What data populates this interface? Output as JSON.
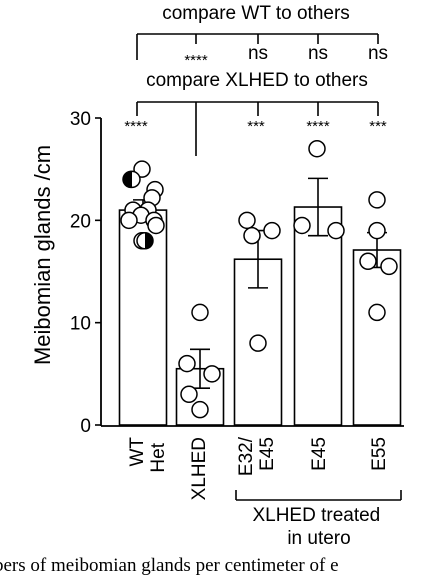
{
  "chart_data": {
    "type": "bar",
    "ylabel": "Meibomian glands /cm",
    "ylim": [
      0,
      30
    ],
    "yticks": [
      0,
      10,
      20,
      30
    ],
    "error_bars": true,
    "individual_points": true,
    "grid": false,
    "categories": [
      "WT",
      "XLHED",
      "E32/\nE45",
      "E45",
      "E55"
    ],
    "category_labels": [
      "WT",
      "XLHED",
      "E32/",
      "E45",
      "E45",
      "E55"
    ],
    "het_label": "Het",
    "values": [
      21,
      5.5,
      16.2,
      21.3,
      17.1
    ],
    "errors": [
      1.0,
      1.9,
      2.8,
      2.8,
      1.7
    ],
    "points": [
      [
        25,
        24,
        23,
        22.2,
        21,
        21,
        20.5,
        20,
        20,
        19.5,
        18
      ],
      [
        11,
        6,
        5,
        3,
        1.5
      ],
      [
        20,
        19,
        18.5,
        8
      ],
      [
        27,
        19.5,
        19
      ],
      [
        22,
        19,
        16,
        15.5,
        11
      ]
    ],
    "het_points": [
      {
        "value": 24,
        "half": "left"
      },
      {
        "value": 18,
        "half": "right"
      }
    ],
    "comparisons": [
      {
        "label": "compare WT to others",
        "reference": "WT",
        "marks": [
          "****",
          "ns",
          "ns",
          "ns"
        ]
      },
      {
        "label": "compare XLHED to others",
        "reference": "XLHED",
        "marks": [
          "****",
          "***",
          "****",
          "***"
        ]
      }
    ],
    "group_label": "XLHED treated\nin utero"
  },
  "caption": "bers of meibomian glands per centimeter of e"
}
